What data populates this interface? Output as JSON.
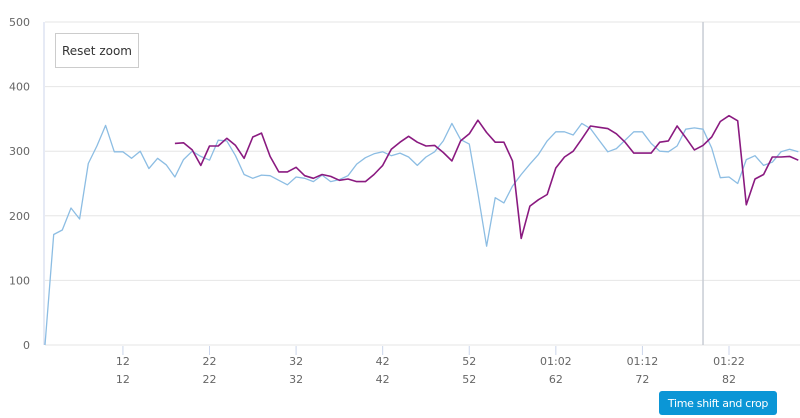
{
  "chart_data": {
    "type": "line",
    "title": "",
    "xlabel": "",
    "ylabel": "",
    "xlim": [
      3,
      90.2
    ],
    "ylim": [
      0,
      500
    ],
    "grid": true,
    "y_ticks": [
      0,
      100,
      200,
      300,
      400,
      500
    ],
    "x_ticks": [
      {
        "value": 12,
        "label_top": "12",
        "label_bottom": "12"
      },
      {
        "value": 22,
        "label_top": "22",
        "label_bottom": "22"
      },
      {
        "value": 32,
        "label_top": "32",
        "label_bottom": "32"
      },
      {
        "value": 42,
        "label_top": "42",
        "label_bottom": "42"
      },
      {
        "value": 52,
        "label_top": "52",
        "label_bottom": "52"
      },
      {
        "value": 62,
        "label_top": "01:02",
        "label_bottom": "62"
      },
      {
        "value": 72,
        "label_top": "01:12",
        "label_bottom": "72"
      },
      {
        "value": 82,
        "label_top": "01:22",
        "label_bottom": "82"
      }
    ],
    "plot_line_x": 79,
    "series": [
      {
        "color": "#8cbde3",
        "x_start": 3,
        "values": [
          0,
          171,
          178,
          212,
          195,
          281,
          308,
          340,
          299,
          299,
          289,
          300,
          273,
          289,
          279,
          260,
          287,
          300,
          292,
          286,
          317,
          316,
          293,
          264,
          258,
          263,
          262,
          255,
          248,
          260,
          258,
          253,
          263,
          253,
          256,
          262,
          280,
          290,
          296,
          299,
          293,
          297,
          291,
          278,
          291,
          299,
          316,
          343,
          318,
          311,
          235,
          153,
          228,
          220,
          246,
          264,
          280,
          295,
          316,
          330,
          330,
          325,
          343,
          335,
          317,
          299,
          304,
          317,
          330,
          330,
          312,
          300,
          299,
          308,
          334,
          336,
          334,
          305,
          259,
          260,
          250,
          287,
          293,
          278,
          283,
          299,
          303,
          299
        ]
      },
      {
        "color": "#8a1a80",
        "x_start": 18,
        "values": [
          312,
          313,
          302,
          278,
          308,
          308,
          320,
          309,
          289,
          322,
          328,
          292,
          268,
          268,
          275,
          262,
          258,
          264,
          261,
          255,
          257,
          253,
          253,
          264,
          278,
          303,
          314,
          323,
          314,
          308,
          309,
          298,
          285,
          316,
          327,
          348,
          329,
          314,
          314,
          285,
          165,
          215,
          225,
          233,
          274,
          291,
          300,
          319,
          339,
          337,
          335,
          327,
          314,
          297,
          297,
          297,
          314,
          316,
          339,
          321,
          302,
          309,
          322,
          346,
          355,
          347,
          217,
          257,
          264,
          291,
          291,
          292,
          286
        ]
      }
    ]
  },
  "controls": {
    "reset_zoom": "Reset zoom",
    "time_shift_crop": "Time shift and crop"
  }
}
